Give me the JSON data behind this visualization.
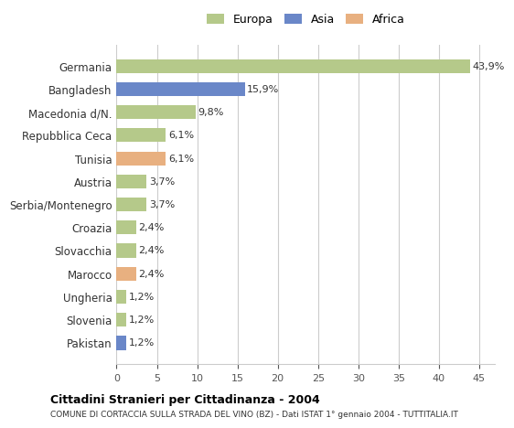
{
  "categories": [
    "Germania",
    "Bangladesh",
    "Macedonia d/N.",
    "Repubblica Ceca",
    "Tunisia",
    "Austria",
    "Serbia/Montenegro",
    "Croazia",
    "Slovacchia",
    "Marocco",
    "Ungheria",
    "Slovenia",
    "Pakistan"
  ],
  "values": [
    43.9,
    15.9,
    9.8,
    6.1,
    6.1,
    3.7,
    3.7,
    2.4,
    2.4,
    2.4,
    1.2,
    1.2,
    1.2
  ],
  "labels": [
    "43,9%",
    "15,9%",
    "9,8%",
    "6,1%",
    "6,1%",
    "3,7%",
    "3,7%",
    "2,4%",
    "2,4%",
    "2,4%",
    "1,2%",
    "1,2%",
    "1,2%"
  ],
  "continents": [
    "Europa",
    "Asia",
    "Europa",
    "Europa",
    "Africa",
    "Europa",
    "Europa",
    "Europa",
    "Europa",
    "Africa",
    "Europa",
    "Europa",
    "Asia"
  ],
  "colors": {
    "Europa": "#b5c98a",
    "Asia": "#6a87c8",
    "Africa": "#e8b080"
  },
  "legend_colors": {
    "Europa": "#b5c98a",
    "Asia": "#6a87c8",
    "Africa": "#e8b080"
  },
  "title": "Cittadini Stranieri per Cittadinanza - 2004",
  "subtitle": "COMUNE DI CORTACCIA SULLA STRADA DEL VINO (BZ) - Dati ISTAT 1° gennaio 2004 - TUTTITALIA.IT",
  "xlim": [
    0,
    47
  ],
  "xticks": [
    0,
    5,
    10,
    15,
    20,
    25,
    30,
    35,
    40,
    45
  ],
  "background_color": "#ffffff",
  "grid_color": "#cccccc",
  "bar_height": 0.6
}
